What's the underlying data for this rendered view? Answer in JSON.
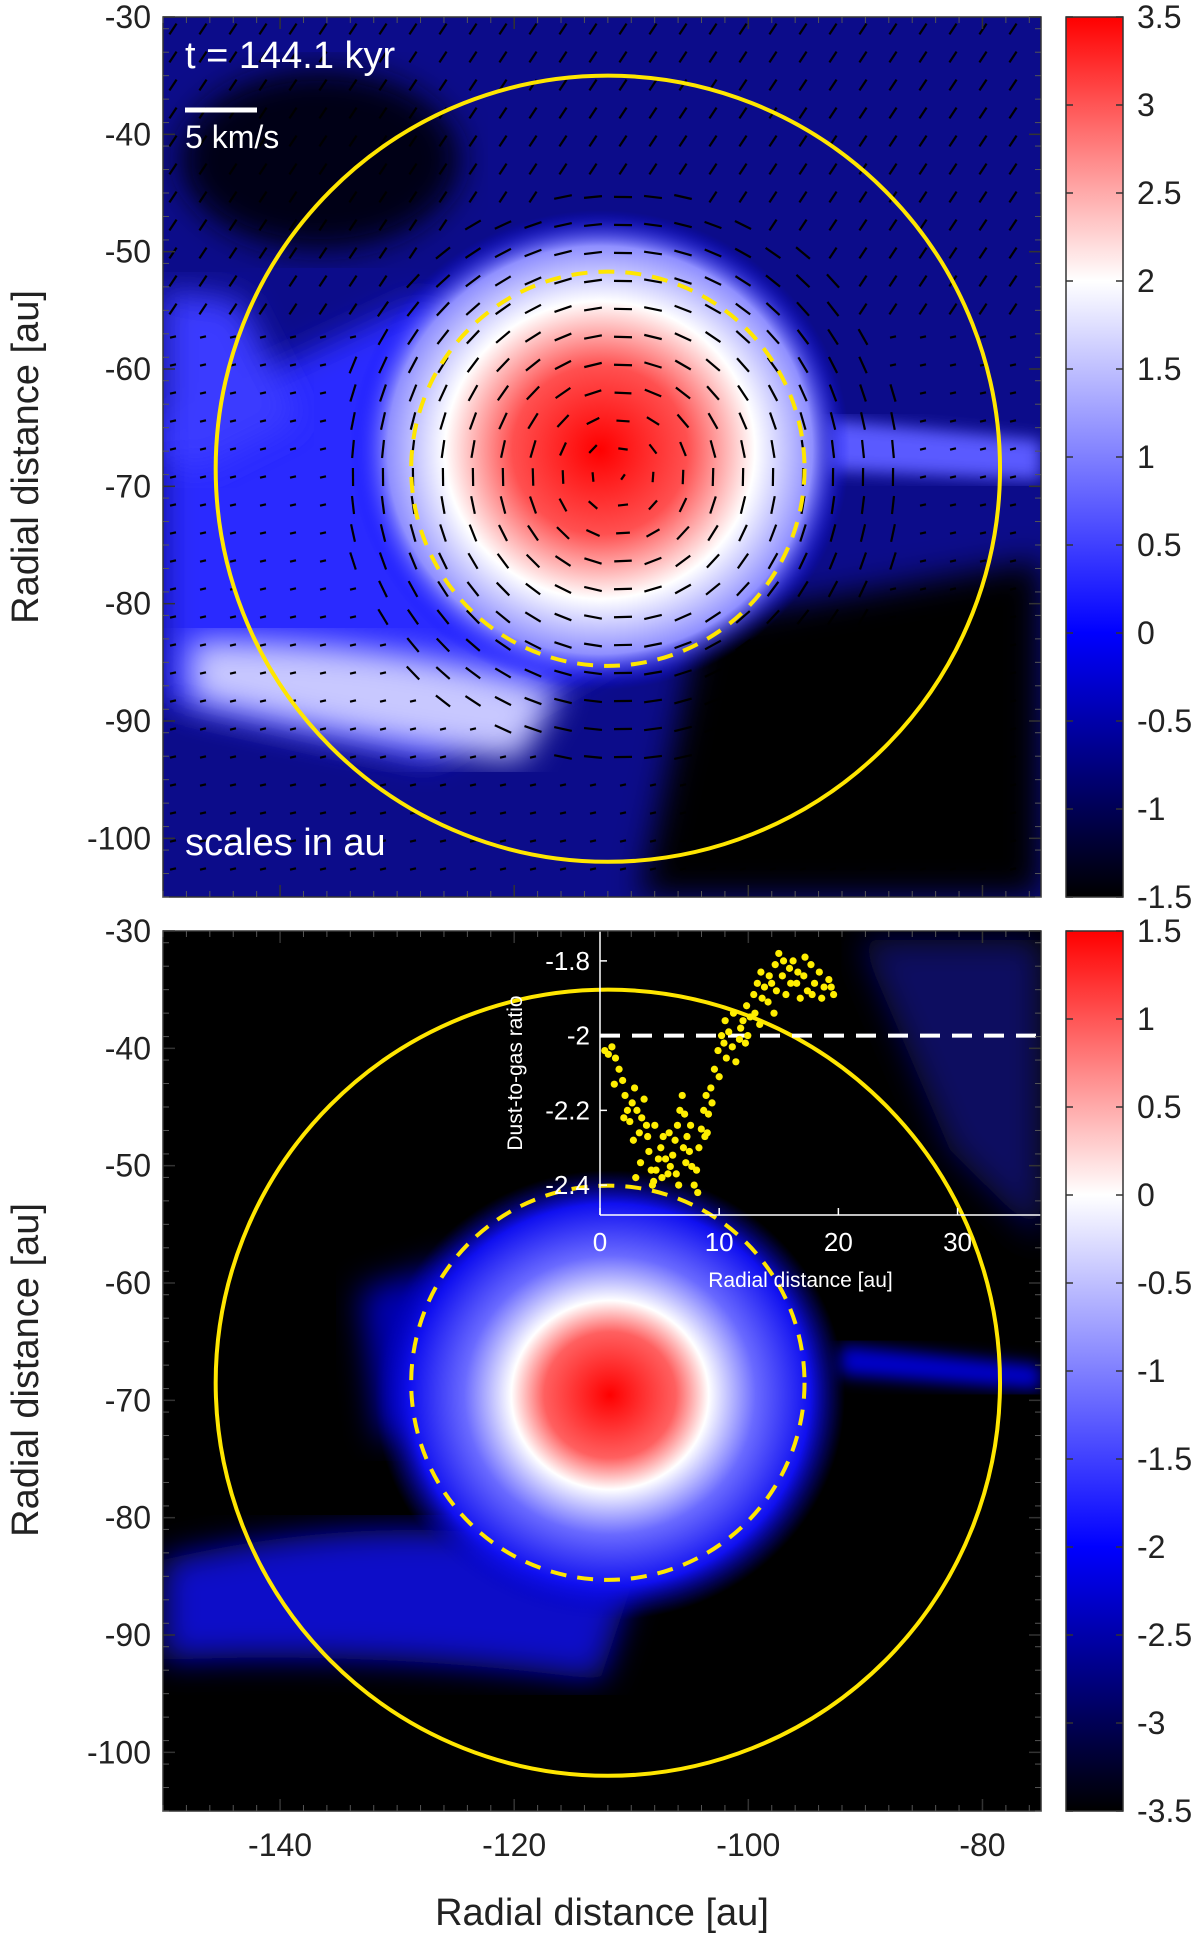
{
  "colors": {
    "circle": "#ffe600",
    "inset_points": "#ffee00",
    "reference_line": "#ffffff",
    "velocity_arrows": "#000000",
    "colormap": [
      "#000000",
      "#0000ff",
      "#ffffff",
      "#ff0000"
    ]
  },
  "chart_data": [
    {
      "type": "heatmap",
      "title": "",
      "annotations": {
        "time": "t = 144.1 kyr",
        "scale_bar": "5 km/s",
        "scales_note": "scales in au"
      },
      "xlabel": "",
      "ylabel": "Radial distance [au]",
      "xlim": [
        -150,
        -75
      ],
      "ylim": [
        -105,
        -30
      ],
      "yticks": [
        {
          "value": -30,
          "label": "-30"
        },
        {
          "value": -40,
          "label": "-40"
        },
        {
          "value": -50,
          "label": "-50"
        },
        {
          "value": -60,
          "label": "-60"
        },
        {
          "value": -70,
          "label": "-70"
        },
        {
          "value": -80,
          "label": "-80"
        },
        {
          "value": -90,
          "label": "-90"
        },
        {
          "value": -100,
          "label": "-100"
        }
      ],
      "colorbar": {
        "range": [
          -1.5,
          3.5
        ],
        "ticks": [
          {
            "value": 3.5,
            "label": "3.5"
          },
          {
            "value": 3,
            "label": "3"
          },
          {
            "value": 2.5,
            "label": "2.5"
          },
          {
            "value": 2,
            "label": "2"
          },
          {
            "value": 1.5,
            "label": "1.5"
          },
          {
            "value": 1,
            "label": "1"
          },
          {
            "value": 0.5,
            "label": "0.5"
          },
          {
            "value": 0,
            "label": "0"
          },
          {
            "value": -0.5,
            "label": "-0.5"
          },
          {
            "value": -1,
            "label": "-1"
          },
          {
            "value": -1.5,
            "label": "-1.5"
          }
        ]
      },
      "clump_center": [
        -111,
        -69
      ],
      "circles": [
        {
          "center": [
            -112,
            -68.5
          ],
          "radius": 33.5,
          "style": "solid"
        },
        {
          "center": [
            -112,
            -68.5
          ],
          "radius": 16.8,
          "style": "dashed"
        }
      ]
    },
    {
      "type": "heatmap",
      "title": "",
      "xlabel": "Radial distance [au]",
      "ylabel": "Radial distance [au]",
      "xlim": [
        -150,
        -75
      ],
      "ylim": [
        -105,
        -30
      ],
      "xticks": [
        {
          "value": -140,
          "label": "-140"
        },
        {
          "value": -120,
          "label": "-120"
        },
        {
          "value": -100,
          "label": "-100"
        },
        {
          "value": -80,
          "label": "-80"
        }
      ],
      "yticks": [
        {
          "value": -30,
          "label": "-30"
        },
        {
          "value": -40,
          "label": "-40"
        },
        {
          "value": -50,
          "label": "-50"
        },
        {
          "value": -60,
          "label": "-60"
        },
        {
          "value": -70,
          "label": "-70"
        },
        {
          "value": -80,
          "label": "-80"
        },
        {
          "value": -90,
          "label": "-90"
        },
        {
          "value": -100,
          "label": "-100"
        }
      ],
      "colorbar": {
        "range": [
          -3.5,
          1.5
        ],
        "ticks": [
          {
            "value": 1.5,
            "label": "1.5"
          },
          {
            "value": 1,
            "label": "1"
          },
          {
            "value": 0.5,
            "label": "0.5"
          },
          {
            "value": 0,
            "label": "0"
          },
          {
            "value": -0.5,
            "label": "-0.5"
          },
          {
            "value": -1,
            "label": "-1"
          },
          {
            "value": -1.5,
            "label": "-1.5"
          },
          {
            "value": -2,
            "label": "-2"
          },
          {
            "value": -2.5,
            "label": "-2.5"
          },
          {
            "value": -3,
            "label": "-3"
          },
          {
            "value": -3.5,
            "label": "-3.5"
          }
        ]
      },
      "clump_center": [
        -111,
        -69
      ],
      "circles": [
        {
          "center": [
            -112,
            -68.5
          ],
          "radius": 33.5,
          "style": "solid"
        },
        {
          "center": [
            -112,
            -68.5
          ],
          "radius": 16.8,
          "style": "dashed"
        }
      ],
      "inset": {
        "type": "scatter",
        "xlabel": "Radial distance [au]",
        "ylabel": "Dust-to-gas ratio",
        "xlim": [
          0,
          37
        ],
        "ylim": [
          -2.48,
          -1.72
        ],
        "xticks": [
          {
            "value": 0,
            "label": "0"
          },
          {
            "value": 10,
            "label": "10"
          },
          {
            "value": 20,
            "label": "20"
          },
          {
            "value": 30,
            "label": "30"
          }
        ],
        "yticks": [
          {
            "value": -1.8,
            "label": "-1.8"
          },
          {
            "value": -2,
            "label": "-2"
          },
          {
            "value": -2.2,
            "label": "-2.2"
          },
          {
            "value": -2.4,
            "label": "-2.4"
          }
        ],
        "reference_line": -2.0,
        "points": [
          [
            0.4,
            -2.04
          ],
          [
            0.7,
            -2.05
          ],
          [
            1.0,
            -2.03
          ],
          [
            1.3,
            -2.06
          ],
          [
            1.6,
            -2.09
          ],
          [
            1.9,
            -2.12
          ],
          [
            2.1,
            -2.16
          ],
          [
            2.3,
            -2.2
          ],
          [
            2.5,
            -2.23
          ],
          [
            2.7,
            -2.18
          ],
          [
            2.9,
            -2.14
          ],
          [
            3.1,
            -2.2
          ],
          [
            3.3,
            -2.26
          ],
          [
            3.5,
            -2.22
          ],
          [
            3.7,
            -2.17
          ],
          [
            3.9,
            -2.24
          ],
          [
            4.1,
            -2.31
          ],
          [
            4.3,
            -2.36
          ],
          [
            4.5,
            -2.39
          ],
          [
            4.7,
            -2.36
          ],
          [
            4.9,
            -2.33
          ],
          [
            5.1,
            -2.3
          ],
          [
            5.3,
            -2.27
          ],
          [
            5.5,
            -2.33
          ],
          [
            5.7,
            -2.37
          ],
          [
            5.9,
            -2.35
          ],
          [
            6.1,
            -2.32
          ],
          [
            6.3,
            -2.28
          ],
          [
            6.5,
            -2.24
          ],
          [
            6.7,
            -2.2
          ],
          [
            6.9,
            -2.16
          ],
          [
            7.1,
            -2.21
          ],
          [
            7.3,
            -2.27
          ],
          [
            7.5,
            -2.31
          ],
          [
            7.7,
            -2.35
          ],
          [
            7.9,
            -2.4
          ],
          [
            8.1,
            -2.36
          ],
          [
            8.3,
            -2.3
          ],
          [
            8.5,
            -2.25
          ],
          [
            8.7,
            -2.2
          ],
          [
            8.9,
            -2.16
          ],
          [
            9.1,
            -2.21
          ],
          [
            9.3,
            -2.14
          ],
          [
            9.6,
            -2.09
          ],
          [
            9.9,
            -2.04
          ],
          [
            10.2,
            -2.0
          ],
          [
            10.5,
            -1.96
          ],
          [
            10.8,
            -1.99
          ],
          [
            11.1,
            -2.03
          ],
          [
            11.4,
            -2.07
          ],
          [
            11.7,
            -2.01
          ],
          [
            12.0,
            -1.96
          ],
          [
            12.3,
            -1.92
          ],
          [
            12.6,
            -1.95
          ],
          [
            12.9,
            -1.89
          ],
          [
            13.2,
            -1.86
          ],
          [
            13.5,
            -1.83
          ],
          [
            13.8,
            -1.87
          ],
          [
            14.1,
            -1.91
          ],
          [
            14.4,
            -1.86
          ],
          [
            14.7,
            -1.81
          ],
          [
            15.0,
            -1.78
          ],
          [
            15.3,
            -1.84
          ],
          [
            15.6,
            -1.89
          ],
          [
            15.9,
            -1.82
          ],
          [
            16.2,
            -1.8
          ],
          [
            16.5,
            -1.86
          ],
          [
            16.8,
            -1.9
          ],
          [
            17.1,
            -1.84
          ],
          [
            17.4,
            -1.88
          ],
          [
            17.7,
            -1.81
          ],
          [
            18.0,
            -1.86
          ],
          [
            18.4,
            -1.83
          ],
          [
            18.8,
            -1.87
          ],
          [
            19.2,
            -1.85
          ],
          [
            19.6,
            -1.89
          ],
          [
            1.2,
            -2.13
          ],
          [
            2.0,
            -2.22
          ],
          [
            2.8,
            -2.28
          ],
          [
            3.4,
            -2.34
          ],
          [
            4.0,
            -2.27
          ],
          [
            4.6,
            -2.24
          ],
          [
            5.2,
            -2.38
          ],
          [
            5.8,
            -2.26
          ],
          [
            6.4,
            -2.37
          ],
          [
            7.0,
            -2.3
          ],
          [
            7.6,
            -2.24
          ],
          [
            8.2,
            -2.42
          ],
          [
            8.8,
            -2.27
          ],
          [
            9.4,
            -2.18
          ],
          [
            10.0,
            -2.11
          ],
          [
            10.6,
            -2.06
          ],
          [
            11.2,
            -1.94
          ],
          [
            11.8,
            -1.98
          ],
          [
            12.4,
            -2.0
          ],
          [
            13.0,
            -1.94
          ],
          [
            13.6,
            -1.9
          ],
          [
            14.2,
            -1.84
          ],
          [
            14.8,
            -1.88
          ],
          [
            15.4,
            -1.8
          ],
          [
            16.0,
            -1.86
          ],
          [
            16.6,
            -1.83
          ],
          [
            17.2,
            -1.79
          ],
          [
            17.8,
            -1.89
          ],
          [
            18.6,
            -1.9
          ],
          [
            19.4,
            -1.87
          ],
          [
            3.0,
            -2.38
          ],
          [
            4.4,
            -2.4
          ],
          [
            6.6,
            -2.4
          ],
          [
            7.2,
            -2.34
          ],
          [
            9.0,
            -2.26
          ],
          [
            10.4,
            -2.02
          ],
          [
            12.2,
            -2.02
          ],
          [
            13.4,
            -1.97
          ],
          [
            14.6,
            -1.94
          ]
        ]
      }
    }
  ]
}
